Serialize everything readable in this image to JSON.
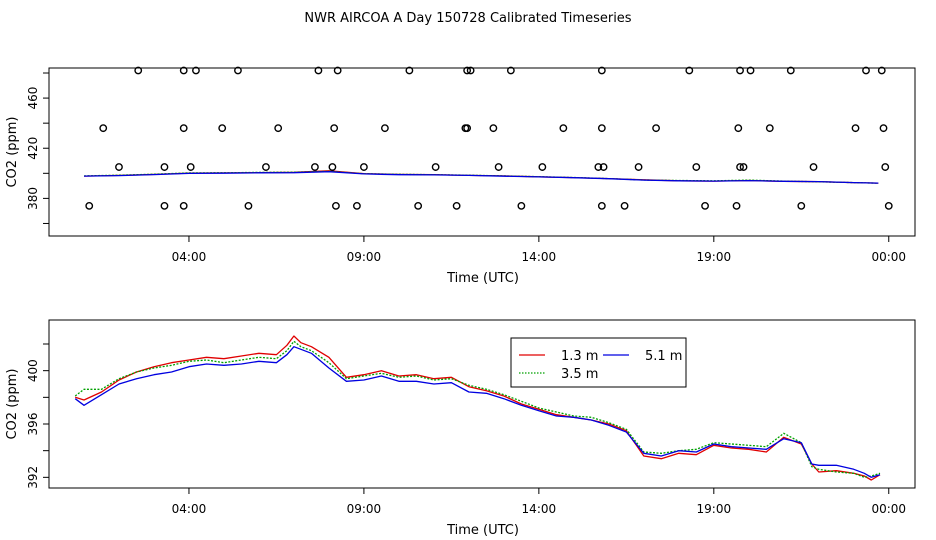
{
  "figure": {
    "title": "NWR AIRCOA A  Day 150728  Calibrated Timeseries"
  },
  "chart_data": [
    {
      "id": "top",
      "type": "line+scatter",
      "xlabel": "Time (UTC)",
      "ylabel": "CO2 (ppm)",
      "xlim": [
        0.0,
        24.75
      ],
      "ylim": [
        350,
        484
      ],
      "x_ticks": [
        {
          "value": 4,
          "label": "04:00"
        },
        {
          "value": 9,
          "label": "09:00"
        },
        {
          "value": 14,
          "label": "14:00"
        },
        {
          "value": 19,
          "label": "19:00"
        },
        {
          "value": 24,
          "label": "00:00"
        }
      ],
      "y_ticks": [
        {
          "value": 380,
          "label": "380"
        },
        {
          "value": 420,
          "label": "420"
        },
        {
          "value": 460,
          "label": "460"
        }
      ],
      "cal_points": {
        "name": "calibration standards",
        "marker": "open circle",
        "points": [
          [
            1.15,
            374
          ],
          [
            3.3,
            374
          ],
          [
            3.85,
            374
          ],
          [
            5.7,
            374
          ],
          [
            8.2,
            374
          ],
          [
            8.8,
            374
          ],
          [
            10.55,
            374
          ],
          [
            11.65,
            374
          ],
          [
            13.5,
            374
          ],
          [
            15.8,
            374
          ],
          [
            16.45,
            374
          ],
          [
            18.75,
            374
          ],
          [
            19.65,
            374
          ],
          [
            21.5,
            374
          ],
          [
            2.0,
            405
          ],
          [
            4.05,
            405
          ],
          [
            6.2,
            405
          ],
          [
            7.6,
            405
          ],
          [
            8.1,
            405
          ],
          [
            9.0,
            405
          ],
          [
            11.05,
            405
          ],
          [
            12.85,
            405
          ],
          [
            14.1,
            405
          ],
          [
            15.7,
            405
          ],
          [
            16.85,
            405
          ],
          [
            18.5,
            405
          ],
          [
            19.85,
            405
          ],
          [
            21.85,
            405
          ],
          [
            1.55,
            436
          ],
          [
            4.95,
            436
          ],
          [
            6.55,
            436
          ],
          [
            8.15,
            436
          ],
          [
            9.6,
            436
          ],
          [
            11.9,
            436
          ],
          [
            12.7,
            436
          ],
          [
            14.7,
            436
          ],
          [
            15.8,
            436
          ],
          [
            17.35,
            436
          ],
          [
            19.7,
            436
          ],
          [
            20.6,
            436
          ],
          [
            23.05,
            436
          ],
          [
            23.85,
            436
          ],
          [
            2.55,
            482
          ],
          [
            4.2,
            482
          ],
          [
            5.4,
            482
          ],
          [
            7.7,
            482
          ],
          [
            8.25,
            482
          ],
          [
            10.3,
            482
          ],
          [
            12.05,
            482
          ],
          [
            13.2,
            482
          ],
          [
            15.8,
            482
          ],
          [
            18.3,
            482
          ],
          [
            20.05,
            482
          ],
          [
            21.2,
            482
          ],
          [
            23.35,
            482
          ],
          [
            23.8,
            482
          ],
          [
            3.3,
            405
          ],
          [
            3.85,
            436
          ],
          [
            3.85,
            482
          ],
          [
            11.95,
            436
          ],
          [
            11.95,
            482
          ],
          [
            15.85,
            405
          ],
          [
            19.75,
            482
          ],
          [
            19.75,
            405
          ],
          [
            23.9,
            405
          ],
          [
            24.0,
            374
          ]
        ]
      },
      "series": [
        {
          "name": "1.3 m",
          "color": "#e00000",
          "x": [
            1,
            2,
            3,
            4,
            5,
            6,
            7,
            8,
            9,
            10,
            11,
            12,
            13,
            14,
            15,
            16,
            17,
            18,
            19,
            20,
            21,
            22,
            23,
            23.7
          ],
          "values": [
            397.8,
            398.3,
            399.1,
            400.2,
            400.3,
            400.6,
            400.8,
            402.0,
            399.8,
            399.1,
            399.0,
            398.3,
            397.9,
            397.2,
            396.6,
            395.8,
            394.8,
            394.0,
            393.8,
            394.3,
            393.6,
            393.3,
            392.6,
            392.2
          ]
        },
        {
          "name": "3.5 m",
          "color": "#00a000",
          "x": [
            1,
            2,
            3,
            4,
            5,
            6,
            7,
            8,
            9,
            10,
            11,
            12,
            13,
            14,
            15,
            16,
            17,
            18,
            19,
            20,
            21,
            22,
            23,
            23.7
          ],
          "values": [
            397.9,
            398.5,
            399.3,
            400.3,
            400.4,
            400.7,
            400.9,
            401.6,
            399.7,
            399.2,
            398.9,
            398.5,
            397.9,
            397.3,
            396.7,
            395.8,
            394.7,
            394.3,
            394.0,
            394.6,
            393.8,
            393.2,
            392.6,
            392.1
          ]
        },
        {
          "name": "5.1 m",
          "color": "#0000e0",
          "x": [
            1,
            2,
            3,
            4,
            5,
            6,
            7,
            8,
            9,
            10,
            11,
            12,
            13,
            14,
            15,
            16,
            17,
            18,
            19,
            20,
            21,
            22,
            23,
            23.7
          ],
          "values": [
            397.8,
            398.2,
            399.0,
            399.9,
            400.1,
            400.4,
            400.5,
            401.3,
            399.5,
            398.9,
            398.7,
            398.3,
            397.7,
            397.1,
            396.5,
            395.7,
            394.6,
            394.0,
            393.8,
            394.2,
            393.6,
            393.4,
            392.6,
            392.2
          ]
        }
      ]
    },
    {
      "id": "bottom",
      "type": "line",
      "xlabel": "Time (UTC)",
      "ylabel": "CO2 (ppm)",
      "xlim": [
        0.0,
        24.75
      ],
      "ylim": [
        391.2,
        403.8
      ],
      "x_ticks": [
        {
          "value": 4,
          "label": "04:00"
        },
        {
          "value": 9,
          "label": "09:00"
        },
        {
          "value": 14,
          "label": "14:00"
        },
        {
          "value": 19,
          "label": "19:00"
        },
        {
          "value": 24,
          "label": "00:00"
        }
      ],
      "y_ticks": [
        {
          "value": 392,
          "label": "392"
        },
        {
          "value": 396,
          "label": "396"
        },
        {
          "value": 400,
          "label": "400"
        }
      ],
      "legend": {
        "placement": "top-center",
        "entries": [
          {
            "label": "1.3 m",
            "color": "#e00000"
          },
          {
            "label": "5.1 m",
            "color": "#0000e0"
          },
          {
            "label": "3.5 m",
            "color": "#00a000"
          }
        ]
      },
      "series": [
        {
          "name": "1.3 m",
          "color": "#e00000",
          "x": [
            0.75,
            1.0,
            1.5,
            2.0,
            2.5,
            3.0,
            3.5,
            4.0,
            4.5,
            5.0,
            5.5,
            6.0,
            6.5,
            6.8,
            7.0,
            7.2,
            7.5,
            8.0,
            8.5,
            9.0,
            9.5,
            10.0,
            10.5,
            11.0,
            11.5,
            12.0,
            12.5,
            13.0,
            13.5,
            14.0,
            14.5,
            15.0,
            15.5,
            16.0,
            16.5,
            17.0,
            17.5,
            18.0,
            18.5,
            19.0,
            19.5,
            20.0,
            20.5,
            21.0,
            21.5,
            21.8,
            22.0,
            22.5,
            23.0,
            23.3,
            23.5,
            23.75
          ],
          "values": [
            398.0,
            397.8,
            398.4,
            399.3,
            399.9,
            400.3,
            400.6,
            400.8,
            401.0,
            400.9,
            401.1,
            401.3,
            401.2,
            401.9,
            402.6,
            402.1,
            401.8,
            401.0,
            399.5,
            399.7,
            400.0,
            399.6,
            399.7,
            399.4,
            399.5,
            398.8,
            398.5,
            398.1,
            397.5,
            397.1,
            396.7,
            396.5,
            396.3,
            396.0,
            395.5,
            393.6,
            393.4,
            393.8,
            393.7,
            394.4,
            394.2,
            394.1,
            393.9,
            395.0,
            394.5,
            393.0,
            392.4,
            392.5,
            392.3,
            392.1,
            391.8,
            392.2
          ]
        },
        {
          "name": "3.5 m",
          "color": "#00a000",
          "x": [
            0.75,
            1.0,
            1.5,
            2.0,
            2.5,
            3.0,
            3.5,
            4.0,
            4.5,
            5.0,
            5.5,
            6.0,
            6.5,
            6.8,
            7.0,
            7.2,
            7.5,
            8.0,
            8.5,
            9.0,
            9.5,
            10.0,
            10.5,
            11.0,
            11.5,
            12.0,
            12.5,
            13.0,
            13.5,
            14.0,
            14.5,
            15.0,
            15.5,
            16.0,
            16.5,
            17.0,
            17.5,
            18.0,
            18.5,
            19.0,
            19.5,
            20.0,
            20.5,
            21.0,
            21.5,
            21.8,
            22.0,
            22.5,
            23.0,
            23.3,
            23.5,
            23.75
          ],
          "values": [
            398.1,
            398.6,
            398.6,
            399.4,
            399.9,
            400.2,
            400.4,
            400.7,
            400.8,
            400.6,
            400.8,
            401.0,
            400.9,
            401.5,
            402.2,
            401.8,
            401.5,
            400.6,
            399.4,
            399.6,
            399.8,
            399.5,
            399.6,
            399.3,
            399.4,
            398.9,
            398.6,
            398.2,
            397.7,
            397.2,
            396.9,
            396.6,
            396.5,
            396.1,
            395.6,
            393.9,
            393.8,
            394.0,
            394.1,
            394.6,
            394.5,
            394.4,
            394.3,
            395.3,
            394.6,
            392.8,
            392.6,
            392.4,
            392.3,
            392.0,
            392.1,
            392.3
          ]
        },
        {
          "name": "5.1 m",
          "color": "#0000e0",
          "x": [
            0.75,
            1.0,
            1.5,
            2.0,
            2.5,
            3.0,
            3.5,
            4.0,
            4.5,
            5.0,
            5.5,
            6.0,
            6.5,
            6.8,
            7.0,
            7.2,
            7.5,
            8.0,
            8.5,
            9.0,
            9.5,
            10.0,
            10.5,
            11.0,
            11.5,
            12.0,
            12.5,
            13.0,
            13.5,
            14.0,
            14.5,
            15.0,
            15.5,
            16.0,
            16.5,
            17.0,
            17.5,
            18.0,
            18.5,
            19.0,
            19.5,
            20.0,
            20.5,
            21.0,
            21.5,
            21.8,
            22.0,
            22.5,
            23.0,
            23.3,
            23.5,
            23.75
          ],
          "values": [
            397.9,
            397.4,
            398.2,
            399.0,
            399.4,
            399.7,
            399.9,
            400.3,
            400.5,
            400.4,
            400.5,
            400.7,
            400.6,
            401.2,
            401.8,
            401.6,
            401.3,
            400.2,
            399.2,
            399.3,
            399.6,
            399.2,
            399.2,
            399.0,
            399.1,
            398.4,
            398.3,
            397.9,
            397.4,
            397.0,
            396.6,
            396.5,
            396.3,
            395.9,
            395.4,
            393.8,
            393.6,
            394.0,
            393.9,
            394.5,
            394.3,
            394.2,
            394.1,
            394.9,
            394.6,
            393.0,
            392.9,
            392.9,
            392.6,
            392.3,
            392.0,
            392.2
          ]
        }
      ]
    }
  ]
}
